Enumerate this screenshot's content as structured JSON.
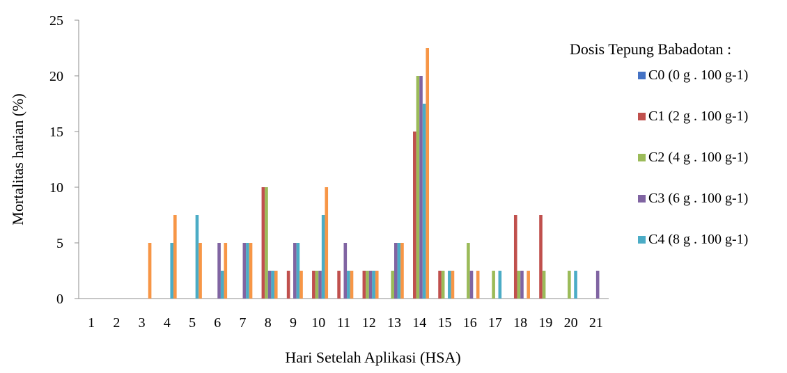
{
  "chart_data": {
    "type": "bar",
    "title": "",
    "xlabel": "Hari Setelah Aplikasi (HSA)",
    "ylabel": "Mortalitas harian (%)",
    "ylim": [
      0,
      25
    ],
    "yticks": [
      "0",
      "5",
      "10",
      "15",
      "20",
      "25"
    ],
    "categories": [
      "1",
      "2",
      "3",
      "4",
      "5",
      "6",
      "7",
      "8",
      "9",
      "10",
      "11",
      "12",
      "13",
      "14",
      "15",
      "16",
      "17",
      "18",
      "19",
      "20",
      "21"
    ],
    "legend_title": "Dosis Tepung Babadotan :",
    "legend_position": "right",
    "series": [
      {
        "name": "C0 (0 g . 100 g-1)",
        "color": "#4472C4",
        "values": [
          0,
          0,
          0,
          0,
          0,
          0,
          0,
          0,
          0,
          0,
          0,
          0,
          0,
          0,
          0,
          0,
          0,
          0,
          0,
          0,
          0
        ]
      },
      {
        "name": "C1 (2 g . 100 g-1)",
        "color": "#C0504D",
        "values": [
          0,
          0,
          0,
          0,
          0,
          0,
          0,
          10,
          2.5,
          2.5,
          2.5,
          2.5,
          0,
          15,
          2.5,
          0,
          0,
          7.5,
          7.5,
          0,
          0
        ]
      },
      {
        "name": "C2 (4 g . 100 g-1)",
        "color": "#9BBB59",
        "values": [
          0,
          0,
          0,
          0,
          0,
          0,
          0,
          10,
          0,
          2.5,
          0,
          2.5,
          2.5,
          20,
          2.5,
          5,
          2.5,
          2.5,
          2.5,
          2.5,
          0
        ]
      },
      {
        "name": "C3 (6 g . 100 g-1)",
        "color": "#8064A2",
        "values": [
          0,
          0,
          0,
          0,
          0,
          5,
          5,
          2.5,
          5,
          2.5,
          5,
          2.5,
          5,
          20,
          0,
          2.5,
          0,
          2.5,
          0,
          0,
          2.5
        ]
      },
      {
        "name": "C4 (8 g . 100 g-1)",
        "color": "#4BACC6",
        "values": [
          0,
          0,
          0,
          5,
          7.5,
          2.5,
          5,
          2.5,
          5,
          7.5,
          2.5,
          2.5,
          5,
          17.5,
          2.5,
          0,
          2.5,
          0,
          0,
          2.5,
          0
        ]
      },
      {
        "name": "",
        "color": "#F79646",
        "values": [
          0,
          0,
          5,
          7.5,
          5,
          5,
          5,
          2.5,
          2.5,
          10,
          2.5,
          2.5,
          5,
          22.5,
          2.5,
          2.5,
          0,
          2.5,
          0,
          0,
          0
        ]
      }
    ]
  }
}
